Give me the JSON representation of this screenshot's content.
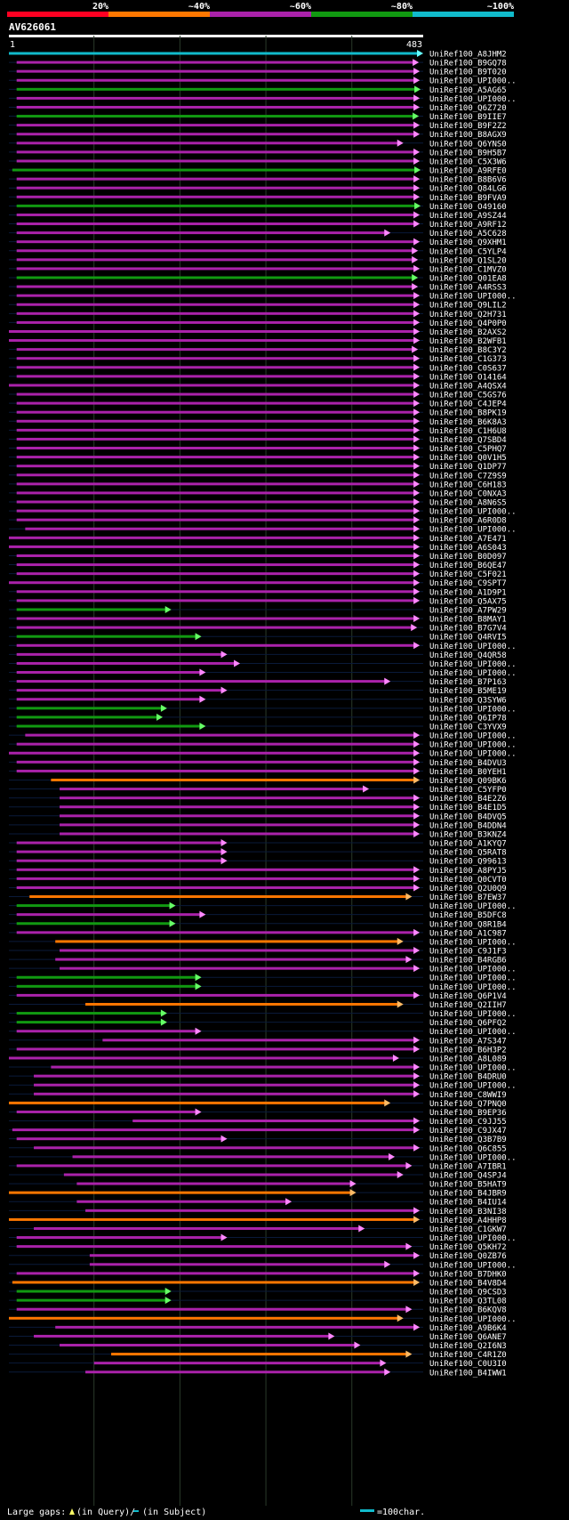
{
  "query_label": "AV626061",
  "query_length": 483,
  "scale_ticks": [
    "20%",
    "~40%",
    "~60%",
    "~80%",
    "~100%"
  ],
  "scale_colors": [
    "#ff0022",
    "#ff7700",
    "#aa22aa",
    "#119911",
    "#11bbcc"
  ],
  "axis_start_label": "1",
  "axis_end_label": "483",
  "footer": {
    "large_gaps_label": "Large gaps:",
    "in_query_label": "(in Query)/",
    "in_subject_label": "(in Subject)",
    "scale_label": "=100char."
  },
  "chart_data": {
    "type": "alignment-overview",
    "query": "AV626061",
    "query_range": [
      1,
      483
    ],
    "color_legend": {
      "red": "20%",
      "orange": "~40%",
      "purple": "~60%",
      "green": "~80%",
      "cyan": "~100%"
    },
    "hits": [
      {
        "name": "UniRef100_A8JHM2",
        "color": "cyan",
        "start": 1,
        "end": 483
      },
      {
        "name": "UniRef100_B9GQ78",
        "color": "purple",
        "start": 10,
        "end": 478
      },
      {
        "name": "UniRef100_B9T020",
        "color": "purple",
        "start": 10,
        "end": 479
      },
      {
        "name": "UniRef100_UPI000..",
        "color": "purple",
        "start": 10,
        "end": 479
      },
      {
        "name": "UniRef100_A5AG65",
        "color": "green",
        "start": 10,
        "end": 480
      },
      {
        "name": "UniRef100_UPI000..",
        "color": "purple",
        "start": 10,
        "end": 479
      },
      {
        "name": "UniRef100_Q6Z720",
        "color": "purple",
        "start": 10,
        "end": 479
      },
      {
        "name": "UniRef100_B9IIE7",
        "color": "green",
        "start": 10,
        "end": 478
      },
      {
        "name": "UniRef100_B9F2Z2",
        "color": "purple",
        "start": 10,
        "end": 479
      },
      {
        "name": "UniRef100_B8AGX9",
        "color": "purple",
        "start": 10,
        "end": 479
      },
      {
        "name": "UniRef100_Q6YNS0",
        "color": "purple",
        "start": 10,
        "end": 460
      },
      {
        "name": "UniRef100_B9H5B7",
        "color": "purple",
        "start": 10,
        "end": 479
      },
      {
        "name": "UniRef100_C5X3W6",
        "color": "purple",
        "start": 10,
        "end": 479
      },
      {
        "name": "UniRef100_A9RFE0",
        "color": "green",
        "start": 5,
        "end": 480
      },
      {
        "name": "UniRef100_B8B6V6",
        "color": "purple",
        "start": 10,
        "end": 479
      },
      {
        "name": "UniRef100_Q84LG6",
        "color": "purple",
        "start": 10,
        "end": 479
      },
      {
        "name": "UniRef100_B9FVA9",
        "color": "purple",
        "start": 10,
        "end": 479
      },
      {
        "name": "UniRef100_O49160",
        "color": "green",
        "start": 10,
        "end": 480
      },
      {
        "name": "UniRef100_A9SZ44",
        "color": "purple",
        "start": 10,
        "end": 479
      },
      {
        "name": "UniRef100_A9RF12",
        "color": "purple",
        "start": 10,
        "end": 479
      },
      {
        "name": "UniRef100_A5C628",
        "color": "purple",
        "start": 10,
        "end": 445
      },
      {
        "name": "UniRef100_Q9XHM1",
        "color": "purple",
        "start": 10,
        "end": 479
      },
      {
        "name": "UniRef100_C5YLP4",
        "color": "purple",
        "start": 10,
        "end": 477
      },
      {
        "name": "UniRef100_Q1SL20",
        "color": "purple",
        "start": 10,
        "end": 477
      },
      {
        "name": "UniRef100_C1MVZ0",
        "color": "purple",
        "start": 10,
        "end": 479
      },
      {
        "name": "UniRef100_Q01EA8",
        "color": "green",
        "start": 10,
        "end": 477
      },
      {
        "name": "UniRef100_A4RSS3",
        "color": "purple",
        "start": 10,
        "end": 477
      },
      {
        "name": "UniRef100_UPI000..",
        "color": "purple",
        "start": 10,
        "end": 479
      },
      {
        "name": "UniRef100_Q9LIL2",
        "color": "purple",
        "start": 10,
        "end": 479
      },
      {
        "name": "UniRef100_Q2H731",
        "color": "purple",
        "start": 10,
        "end": 479
      },
      {
        "name": "UniRef100_Q4P0P0",
        "color": "purple",
        "start": 10,
        "end": 479
      },
      {
        "name": "UniRef100_B2AXS2",
        "color": "purple",
        "start": 1,
        "end": 479
      },
      {
        "name": "UniRef100_B2WFB1",
        "color": "purple",
        "start": 1,
        "end": 479
      },
      {
        "name": "UniRef100_B8C3Y2",
        "color": "purple",
        "start": 10,
        "end": 477
      },
      {
        "name": "UniRef100_C1G373",
        "color": "purple",
        "start": 10,
        "end": 479
      },
      {
        "name": "UniRef100_C0S637",
        "color": "purple",
        "start": 10,
        "end": 479
      },
      {
        "name": "UniRef100_O14164",
        "color": "purple",
        "start": 10,
        "end": 479
      },
      {
        "name": "UniRef100_A4QSX4",
        "color": "purple",
        "start": 1,
        "end": 479
      },
      {
        "name": "UniRef100_C5GS76",
        "color": "purple",
        "start": 10,
        "end": 479
      },
      {
        "name": "UniRef100_C4JEP4",
        "color": "purple",
        "start": 10,
        "end": 479
      },
      {
        "name": "UniRef100_B8PK19",
        "color": "purple",
        "start": 10,
        "end": 479
      },
      {
        "name": "UniRef100_B6K8A3",
        "color": "purple",
        "start": 10,
        "end": 479
      },
      {
        "name": "UniRef100_C1H6U8",
        "color": "purple",
        "start": 10,
        "end": 479
      },
      {
        "name": "UniRef100_Q7SBD4",
        "color": "purple",
        "start": 10,
        "end": 479
      },
      {
        "name": "UniRef100_C5PHQ7",
        "color": "purple",
        "start": 10,
        "end": 479
      },
      {
        "name": "UniRef100_Q0V1H5",
        "color": "purple",
        "start": 10,
        "end": 479
      },
      {
        "name": "UniRef100_Q1DP77",
        "color": "purple",
        "start": 10,
        "end": 479
      },
      {
        "name": "UniRef100_C7Z9S9",
        "color": "purple",
        "start": 10,
        "end": 479
      },
      {
        "name": "UniRef100_C6H183",
        "color": "purple",
        "start": 10,
        "end": 479
      },
      {
        "name": "UniRef100_C0NXA3",
        "color": "purple",
        "start": 10,
        "end": 479
      },
      {
        "name": "UniRef100_A8N6S5",
        "color": "purple",
        "start": 10,
        "end": 479
      },
      {
        "name": "UniRef100_UPI000..",
        "color": "purple",
        "start": 10,
        "end": 479
      },
      {
        "name": "UniRef100_A6R0D8",
        "color": "purple",
        "start": 10,
        "end": 479
      },
      {
        "name": "UniRef100_UPI000..",
        "color": "purple",
        "start": 20,
        "end": 479
      },
      {
        "name": "UniRef100_A7E471",
        "color": "purple",
        "start": 1,
        "end": 479
      },
      {
        "name": "UniRef100_A6S043",
        "color": "purple",
        "start": 1,
        "end": 479
      },
      {
        "name": "UniRef100_B0D097",
        "color": "purple",
        "start": 10,
        "end": 479
      },
      {
        "name": "UniRef100_B6QE47",
        "color": "purple",
        "start": 10,
        "end": 479
      },
      {
        "name": "UniRef100_C5F021",
        "color": "purple",
        "start": 10,
        "end": 479
      },
      {
        "name": "UniRef100_C9SPT7",
        "color": "purple",
        "start": 1,
        "end": 479
      },
      {
        "name": "UniRef100_A1D9P1",
        "color": "purple",
        "start": 10,
        "end": 479
      },
      {
        "name": "UniRef100_Q5AX75",
        "color": "purple",
        "start": 10,
        "end": 479
      },
      {
        "name": "UniRef100_A7PW29",
        "color": "green",
        "start": 10,
        "end": 190
      },
      {
        "name": "UniRef100_B8MAY1",
        "color": "purple",
        "start": 10,
        "end": 479
      },
      {
        "name": "UniRef100_B7G7V4",
        "color": "purple",
        "start": 10,
        "end": 476
      },
      {
        "name": "UniRef100_Q4RVI5",
        "color": "green",
        "start": 10,
        "end": 225
      },
      {
        "name": "UniRef100_UPI000..",
        "color": "purple",
        "start": 10,
        "end": 479
      },
      {
        "name": "UniRef100_Q4QR58",
        "color": "purple",
        "start": 10,
        "end": 255
      },
      {
        "name": "UniRef100_UPI000..",
        "color": "purple",
        "start": 10,
        "end": 270
      },
      {
        "name": "UniRef100_UPI000..",
        "color": "purple",
        "start": 10,
        "end": 230
      },
      {
        "name": "UniRef100_B7P163",
        "color": "purple",
        "start": 10,
        "end": 445
      },
      {
        "name": "UniRef100_B5ME19",
        "color": "purple",
        "start": 10,
        "end": 255
      },
      {
        "name": "UniRef100_Q3SYW6",
        "color": "purple",
        "start": 10,
        "end": 230
      },
      {
        "name": "UniRef100_UPI000..",
        "color": "green",
        "start": 10,
        "end": 185
      },
      {
        "name": "UniRef100_Q6IP78",
        "color": "green",
        "start": 10,
        "end": 180
      },
      {
        "name": "UniRef100_C3YVX9",
        "color": "green",
        "start": 10,
        "end": 230
      },
      {
        "name": "UniRef100_UPI000..",
        "color": "purple",
        "start": 20,
        "end": 479
      },
      {
        "name": "UniRef100_UPI000..",
        "color": "purple",
        "start": 10,
        "end": 479
      },
      {
        "name": "UniRef100_UPI000..",
        "color": "purple",
        "start": 1,
        "end": 479
      },
      {
        "name": "UniRef100_B4DVU3",
        "color": "purple",
        "start": 10,
        "end": 479
      },
      {
        "name": "UniRef100_B0YEH1",
        "color": "purple",
        "start": 10,
        "end": 479
      },
      {
        "name": "UniRef100_Q09BK6",
        "color": "orange",
        "start": 50,
        "end": 479
      },
      {
        "name": "UniRef100_C5YFP0",
        "color": "purple",
        "start": 60,
        "end": 420
      },
      {
        "name": "UniRef100_B4E2Z6",
        "color": "purple",
        "start": 60,
        "end": 479
      },
      {
        "name": "UniRef100_B4E1D5",
        "color": "purple",
        "start": 60,
        "end": 479
      },
      {
        "name": "UniRef100_B4DVQ5",
        "color": "purple",
        "start": 60,
        "end": 479
      },
      {
        "name": "UniRef100_B4DDN4",
        "color": "purple",
        "start": 60,
        "end": 479
      },
      {
        "name": "UniRef100_B3KNZ4",
        "color": "purple",
        "start": 60,
        "end": 479
      },
      {
        "name": "UniRef100_A1KYQ7",
        "color": "purple",
        "start": 10,
        "end": 255
      },
      {
        "name": "UniRef100_Q5RAT8",
        "color": "purple",
        "start": 10,
        "end": 255
      },
      {
        "name": "UniRef100_Q99613",
        "color": "purple",
        "start": 10,
        "end": 255
      },
      {
        "name": "UniRef100_A8PYJ5",
        "color": "purple",
        "start": 10,
        "end": 479
      },
      {
        "name": "UniRef100_Q0CVT0",
        "color": "purple",
        "start": 10,
        "end": 479
      },
      {
        "name": "UniRef100_Q2U0Q9",
        "color": "purple",
        "start": 10,
        "end": 479
      },
      {
        "name": "UniRef100_B7EW37",
        "color": "orange",
        "start": 25,
        "end": 470
      },
      {
        "name": "UniRef100_UPI000..",
        "color": "green",
        "start": 10,
        "end": 195
      },
      {
        "name": "UniRef100_B5DFC8",
        "color": "purple",
        "start": 10,
        "end": 230
      },
      {
        "name": "UniRef100_Q8R1B4",
        "color": "green",
        "start": 10,
        "end": 195
      },
      {
        "name": "UniRef100_A1C987",
        "color": "purple",
        "start": 10,
        "end": 479
      },
      {
        "name": "UniRef100_UPI000..",
        "color": "orange",
        "start": 55,
        "end": 460
      },
      {
        "name": "UniRef100_C9J1F3",
        "color": "purple",
        "start": 60,
        "end": 479
      },
      {
        "name": "UniRef100_B4RGB6",
        "color": "purple",
        "start": 55,
        "end": 470
      },
      {
        "name": "UniRef100_UPI000..",
        "color": "purple",
        "start": 60,
        "end": 479
      },
      {
        "name": "UniRef100_UPI000..",
        "color": "green",
        "start": 10,
        "end": 225
      },
      {
        "name": "UniRef100_UPI000..",
        "color": "green",
        "start": 10,
        "end": 225
      },
      {
        "name": "UniRef100_Q6P1V4",
        "color": "purple",
        "start": 10,
        "end": 479
      },
      {
        "name": "UniRef100_Q2IIH7",
        "color": "orange",
        "start": 90,
        "end": 460
      },
      {
        "name": "UniRef100_UPI000..",
        "color": "green",
        "start": 10,
        "end": 185
      },
      {
        "name": "UniRef100_Q6PFQ2",
        "color": "green",
        "start": 10,
        "end": 185
      },
      {
        "name": "UniRef100_UPI000..",
        "color": "purple",
        "start": 10,
        "end": 225
      },
      {
        "name": "UniRef100_A7S347",
        "color": "purple",
        "start": 110,
        "end": 479
      },
      {
        "name": "UniRef100_B6H3P2",
        "color": "purple",
        "start": 10,
        "end": 479
      },
      {
        "name": "UniRef100_A8L089",
        "color": "purple",
        "start": 1,
        "end": 455
      },
      {
        "name": "UniRef100_UPI000..",
        "color": "purple",
        "start": 50,
        "end": 479
      },
      {
        "name": "UniRef100_B4DRU0",
        "color": "purple",
        "start": 30,
        "end": 479
      },
      {
        "name": "UniRef100_UPI000..",
        "color": "purple",
        "start": 30,
        "end": 479
      },
      {
        "name": "UniRef100_C8WWI9",
        "color": "purple",
        "start": 30,
        "end": 479
      },
      {
        "name": "UniRef100_Q7PNQ0",
        "color": "orange",
        "start": 1,
        "end": 445
      },
      {
        "name": "UniRef100_B9EP36",
        "color": "purple",
        "start": 10,
        "end": 225
      },
      {
        "name": "UniRef100_C9JJ55",
        "color": "purple",
        "start": 145,
        "end": 479
      },
      {
        "name": "UniRef100_C9JX47",
        "color": "purple",
        "start": 5,
        "end": 479
      },
      {
        "name": "UniRef100_Q3B7B9",
        "color": "purple",
        "start": 10,
        "end": 255
      },
      {
        "name": "UniRef100_Q6C855",
        "color": "purple",
        "start": 30,
        "end": 479
      },
      {
        "name": "UniRef100_UPI000..",
        "color": "purple",
        "start": 75,
        "end": 450
      },
      {
        "name": "UniRef100_A7IBR1",
        "color": "purple",
        "start": 10,
        "end": 470
      },
      {
        "name": "UniRef100_Q4SPJ4",
        "color": "purple",
        "start": 65,
        "end": 460
      },
      {
        "name": "UniRef100_B5HAT9",
        "color": "purple",
        "start": 80,
        "end": 405
      },
      {
        "name": "UniRef100_B4JBR9",
        "color": "orange",
        "start": 1,
        "end": 405
      },
      {
        "name": "UniRef100_B4IU14",
        "color": "purple",
        "start": 80,
        "end": 330
      },
      {
        "name": "UniRef100_B3NI38",
        "color": "purple",
        "start": 90,
        "end": 479
      },
      {
        "name": "UniRef100_A4HHP8",
        "color": "orange",
        "start": 1,
        "end": 479
      },
      {
        "name": "UniRef100_C1GKW7",
        "color": "purple",
        "start": 30,
        "end": 415
      },
      {
        "name": "UniRef100_UPI000..",
        "color": "purple",
        "start": 10,
        "end": 255
      },
      {
        "name": "UniRef100_Q5KH72",
        "color": "purple",
        "start": 10,
        "end": 470
      },
      {
        "name": "UniRef100_Q0ZB76",
        "color": "purple",
        "start": 95,
        "end": 479
      },
      {
        "name": "UniRef100_UPI000..",
        "color": "purple",
        "start": 95,
        "end": 445
      },
      {
        "name": "UniRef100_B7DHK0",
        "color": "purple",
        "start": 10,
        "end": 479
      },
      {
        "name": "UniRef100_B4V8D4",
        "color": "orange",
        "start": 5,
        "end": 479
      },
      {
        "name": "UniRef100_Q9CSD3",
        "color": "green",
        "start": 10,
        "end": 190
      },
      {
        "name": "UniRef100_Q3TL08",
        "color": "green",
        "start": 10,
        "end": 190
      },
      {
        "name": "UniRef100_B6KQV8",
        "color": "purple",
        "start": 10,
        "end": 470
      },
      {
        "name": "UniRef100_UPI000..",
        "color": "orange",
        "start": 1,
        "end": 460
      },
      {
        "name": "UniRef100_A9B6K4",
        "color": "purple",
        "start": 55,
        "end": 479
      },
      {
        "name": "UniRef100_Q6ANE7",
        "color": "purple",
        "start": 30,
        "end": 380
      },
      {
        "name": "UniRef100_Q2I6N3",
        "color": "purple",
        "start": 60,
        "end": 410
      },
      {
        "name": "UniRef100_C4R1Z0",
        "color": "orange",
        "start": 120,
        "end": 470
      },
      {
        "name": "UniRef100_C0U3I0",
        "color": "purple",
        "start": 100,
        "end": 440
      },
      {
        "name": "UniRef100_B4IWW1",
        "color": "purple",
        "start": 90,
        "end": 445
      }
    ]
  }
}
